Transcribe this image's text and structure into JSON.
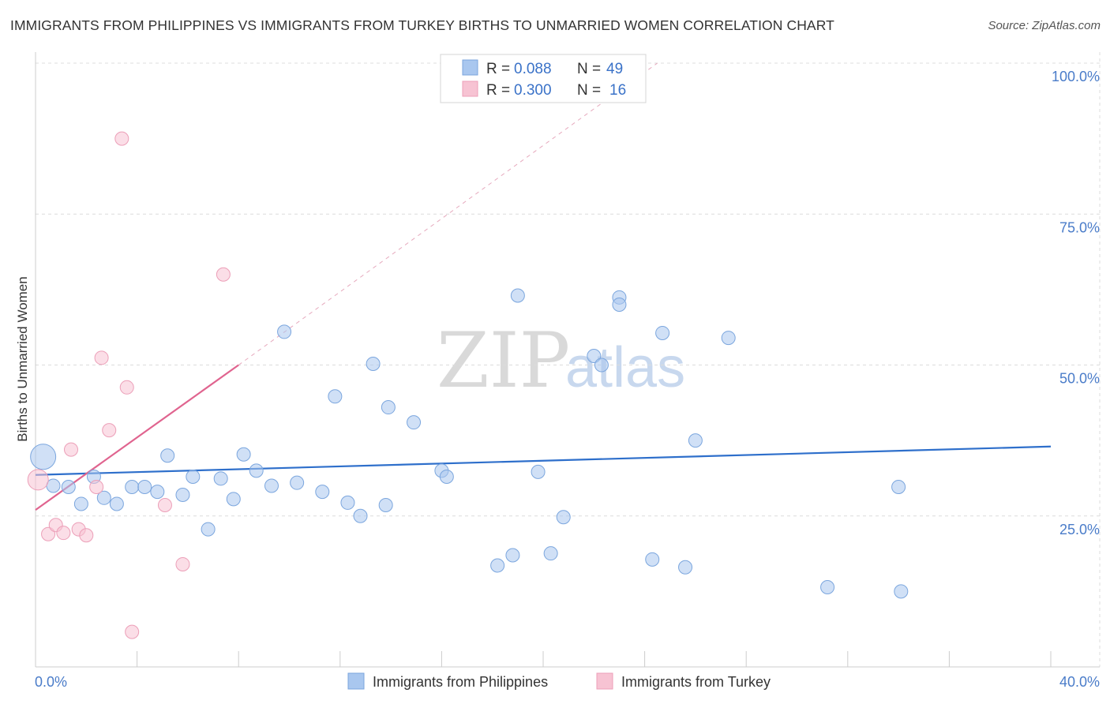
{
  "header": {
    "title": "IMMIGRANTS FROM PHILIPPINES VS IMMIGRANTS FROM TURKEY BIRTHS TO UNMARRIED WOMEN CORRELATION CHART",
    "source": "Source: ZipAtlas.com"
  },
  "watermark": {
    "zip": "ZIP",
    "atlas": "atlas"
  },
  "chart_data": {
    "type": "scatter",
    "title": "IMMIGRANTS FROM PHILIPPINES VS IMMIGRANTS FROM TURKEY BIRTHS TO UNMARRIED WOMEN CORRELATION CHART",
    "xlabel": "",
    "ylabel": "Births to Unmarried Women",
    "xlim": [
      0,
      40
    ],
    "ylim": [
      0,
      100
    ],
    "x_ticks": [
      0,
      4,
      8,
      12,
      16,
      20,
      24,
      28,
      32,
      36,
      40
    ],
    "x_tick_labels": {
      "min": "0.0%",
      "max": "40.0%"
    },
    "y_ticks": [
      {
        "value": 25,
        "label": "25.0%"
      },
      {
        "value": 50,
        "label": "50.0%"
      },
      {
        "value": 75,
        "label": "75.0%"
      },
      {
        "value": 100,
        "label": "100.0%"
      }
    ],
    "grid": true,
    "legend": {
      "position": "top-center",
      "entries": [
        {
          "r_label": "R =",
          "r_value": "0.088",
          "n_label": "N =",
          "n_value": "49"
        },
        {
          "r_label": "R =",
          "r_value": "0.300",
          "n_label": "N =",
          "n_value": "16"
        }
      ]
    },
    "series": [
      {
        "name": "Immigrants from Philippines",
        "color": "#a9c7ef",
        "stroke": "#7ba6de",
        "line_color": "#2e6fcb",
        "trend": {
          "x0": 0,
          "y0": 31.8,
          "x1": 40,
          "y1": 36.5
        },
        "points": [
          [
            0.3,
            34.8
          ],
          [
            0.7,
            30.0
          ],
          [
            1.3,
            29.8
          ],
          [
            1.8,
            27.0
          ],
          [
            2.3,
            31.5
          ],
          [
            2.7,
            28.0
          ],
          [
            3.2,
            27.0
          ],
          [
            3.8,
            29.8
          ],
          [
            4.3,
            29.8
          ],
          [
            4.8,
            29.0
          ],
          [
            5.2,
            35.0
          ],
          [
            5.8,
            28.5
          ],
          [
            6.2,
            31.5
          ],
          [
            6.8,
            22.8
          ],
          [
            7.3,
            31.2
          ],
          [
            7.8,
            27.8
          ],
          [
            8.2,
            35.2
          ],
          [
            8.7,
            32.5
          ],
          [
            9.3,
            30.0
          ],
          [
            9.8,
            55.5
          ],
          [
            10.3,
            30.5
          ],
          [
            11.3,
            29.0
          ],
          [
            11.8,
            44.8
          ],
          [
            12.3,
            27.2
          ],
          [
            12.8,
            25.0
          ],
          [
            13.3,
            50.2
          ],
          [
            13.8,
            26.8
          ],
          [
            13.9,
            43.0
          ],
          [
            14.9,
            40.5
          ],
          [
            16.0,
            32.5
          ],
          [
            16.2,
            31.5
          ],
          [
            18.2,
            16.8
          ],
          [
            18.8,
            18.5
          ],
          [
            19.0,
            61.5
          ],
          [
            19.8,
            32.3
          ],
          [
            20.3,
            18.8
          ],
          [
            20.8,
            24.8
          ],
          [
            22.0,
            51.5
          ],
          [
            22.3,
            50.0
          ],
          [
            23.0,
            61.2
          ],
          [
            23.0,
            60.0
          ],
          [
            24.3,
            17.8
          ],
          [
            24.7,
            55.3
          ],
          [
            25.6,
            16.5
          ],
          [
            26.0,
            37.5
          ],
          [
            27.3,
            54.5
          ],
          [
            31.2,
            13.2
          ],
          [
            34.0,
            29.8
          ],
          [
            34.1,
            12.5
          ]
        ],
        "sizes_note": "first point large"
      },
      {
        "name": "Immigrants from Turkey",
        "color": "#f7c3d3",
        "stroke": "#ec9fb8",
        "line_color": "#e0648f",
        "trend": {
          "x0": 0,
          "y0": 26.0,
          "x1": 8,
          "y1": 50.0
        },
        "trend_ext": {
          "x0": 8,
          "y0": 50.0,
          "x1": 24.5,
          "y1": 100.0
        },
        "points": [
          [
            0.1,
            31.0
          ],
          [
            0.5,
            22.0
          ],
          [
            0.8,
            23.5
          ],
          [
            1.1,
            22.2
          ],
          [
            1.4,
            36.0
          ],
          [
            1.7,
            22.8
          ],
          [
            2.0,
            21.8
          ],
          [
            2.4,
            29.8
          ],
          [
            2.6,
            51.2
          ],
          [
            2.9,
            39.2
          ],
          [
            3.4,
            87.5
          ],
          [
            3.6,
            46.3
          ],
          [
            3.8,
            5.8
          ],
          [
            5.1,
            26.8
          ],
          [
            5.8,
            17.0
          ],
          [
            7.4,
            65.0
          ]
        ]
      }
    ],
    "bottom_legend": [
      {
        "label": "Immigrants from Philippines"
      },
      {
        "label": "Immigrants from Turkey"
      }
    ]
  }
}
